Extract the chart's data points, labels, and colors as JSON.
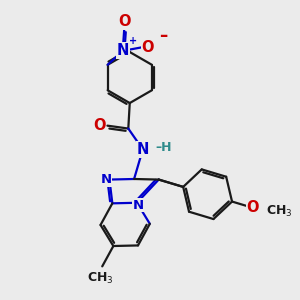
{
  "background_color": "#ebebeb",
  "bond_color": "#1a1a1a",
  "atom_colors": {
    "N": "#0000cc",
    "O": "#cc0000",
    "H": "#2e8b8b"
  },
  "fig_size": [
    3.0,
    3.0
  ],
  "dpi": 100,
  "lw": 1.6,
  "fs": 8.5
}
